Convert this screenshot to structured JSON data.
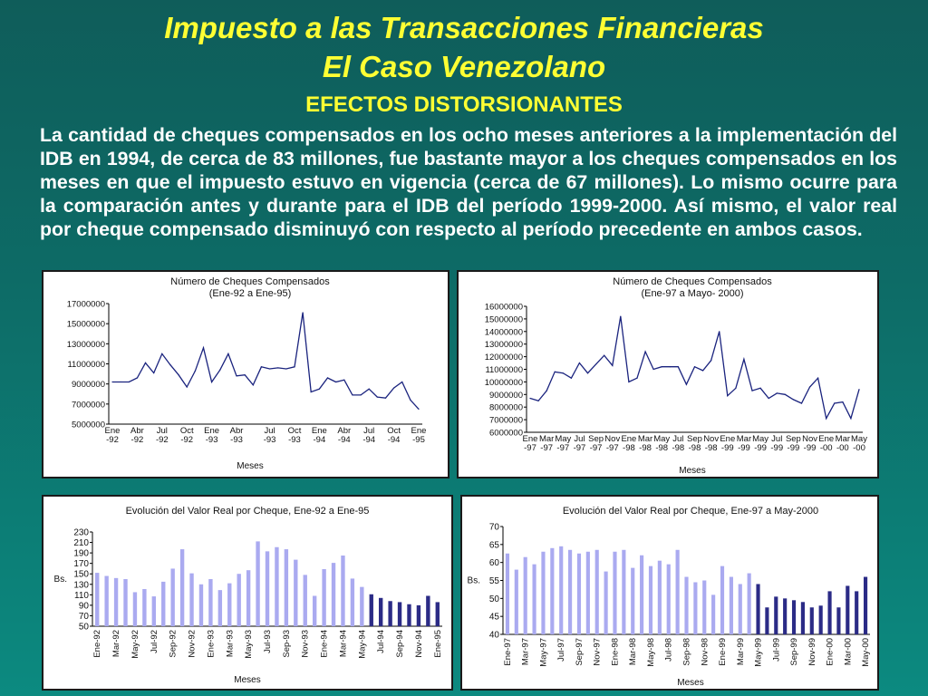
{
  "slide": {
    "title_line1": "Impuesto a las Transacciones Financieras",
    "title_line2": "El Caso Venezolano",
    "subtitle": "EFECTOS DISTORSIONANTES",
    "body": "La cantidad de cheques compensados en los ocho meses anteriores a la implementación del IDB en 1994, de cerca de 83 millones, fue bastante mayor a los cheques compensados en los meses en que el impuesto estuvo en vigencia (cerca de 67 millones). Lo mismo ocurre para la comparación antes y durante para el IDB del período 1999-2000. Así mismo, el valor real por cheque compensado disminuyó con respecto al período precedente en ambos casos."
  },
  "colors": {
    "title": "#ffff33",
    "line": "#1a237e",
    "bar_light": "#aaaaf0",
    "bar_dark": "#2b2b86"
  },
  "chart_data": [
    {
      "type": "line",
      "title": "Número de Cheques Compensados",
      "subtitle": "(Ene-92 a Ene-95)",
      "xlabel": "Meses",
      "ylim": [
        5000000,
        17000000
      ],
      "yticks": [
        "5000000",
        "7000000",
        "9000000",
        "11000000",
        "13000000",
        "15000000",
        "17000000"
      ],
      "xticks": [
        "Ene-92",
        "Abr-92",
        "Jul-92",
        "Oct-92",
        "Ene-93",
        "Abr-93",
        "Jul-93",
        "Oct-93",
        "Ene-94",
        "Abr-94",
        "Jul-94",
        "Oct-94",
        "Ene-95"
      ],
      "values": [
        9200000,
        9200000,
        9200000,
        9600000,
        11100000,
        10100000,
        12000000,
        10900000,
        9900000,
        8700000,
        10300000,
        12600000,
        9200000,
        10400000,
        12000000,
        9800000,
        9900000,
        8900000,
        10700000,
        10500000,
        10600000,
        10500000,
        10700000,
        16100000,
        8200000,
        8500000,
        9600000,
        9200000,
        9400000,
        7900000,
        7900000,
        8500000,
        7700000,
        7600000,
        8600000,
        9200000,
        7400000,
        6500000
      ]
    },
    {
      "type": "line",
      "title": "Número de Cheques Compensados",
      "subtitle": "(Ene-97 a Mayo- 2000)",
      "xlabel": "Meses",
      "ylim": [
        6000000,
        16000000
      ],
      "yticks": [
        "6000000",
        "7000000",
        "8000000",
        "9000000",
        "10000000",
        "11000000",
        "12000000",
        "13000000",
        "14000000",
        "15000000",
        "16000000"
      ],
      "xticks": [
        "Ene-97",
        "Mar-97",
        "May-97",
        "Jul-97",
        "Sep-97",
        "Nov-97",
        "Ene-98",
        "Mar-98",
        "May-98",
        "Jul-98",
        "Sep-98",
        "Nov-98",
        "Ene-99",
        "Mar-99",
        "May-99",
        "Jul-99",
        "Sep-99",
        "Nov-99",
        "Ene-00",
        "Mar-00",
        "May-00"
      ],
      "values": [
        8700000,
        8500000,
        9300000,
        10800000,
        10700000,
        10300000,
        11500000,
        10700000,
        11400000,
        12100000,
        11300000,
        15200000,
        10000000,
        10300000,
        12400000,
        11000000,
        11200000,
        11200000,
        11200000,
        9800000,
        11200000,
        10900000,
        11700000,
        14000000,
        8900000,
        9500000,
        11800000,
        9300000,
        9500000,
        8700000,
        9100000,
        9000000,
        8600000,
        8300000,
        9600000,
        10300000,
        7100000,
        8300000,
        8400000,
        7100000,
        9400000
      ]
    },
    {
      "type": "bar",
      "title": "Evolución del Valor Real por Cheque, Ene-92 a Ene-95",
      "xlabel": "Meses",
      "ylabel": "Bs.",
      "ylim": [
        50,
        230
      ],
      "yticks": [
        "50",
        "70",
        "90",
        "110",
        "130",
        "150",
        "170",
        "190",
        "210",
        "230"
      ],
      "categories": [
        "Ene-92",
        "Feb-92",
        "Mar-92",
        "Abr-92",
        "May-92",
        "Jun-92",
        "Jul-92",
        "Ago-92",
        "Sep-92",
        "Oct-92",
        "Nov-92",
        "Dic-92",
        "Ene-93",
        "Feb-93",
        "Mar-93",
        "Abr-93",
        "May-93",
        "Jun-93",
        "Jul-93",
        "Ago-93",
        "Sep-93",
        "Oct-93",
        "Nov-93",
        "Dic-93",
        "Ene-94",
        "Feb-94",
        "Mar-94",
        "Abr-94",
        "May-94",
        "Jun-94",
        "Jul-94",
        "Ago-94",
        "Sep-94",
        "Oct-94",
        "Nov-94",
        "Dic-94",
        "Ene-95"
      ],
      "xtick_labels": [
        "Ene-92",
        "Mar-92",
        "May-92",
        "Jul-92",
        "Sep-92",
        "Nov-92",
        "Ene-93",
        "Mar-93",
        "May-93",
        "Jul-93",
        "Sep-93",
        "Nov-93",
        "Ene-94",
        "Mar-94",
        "May-94",
        "Jul-94",
        "Sep-94",
        "Nov-94",
        "Ene-95"
      ],
      "values": [
        152,
        146,
        142,
        140,
        115,
        121,
        107,
        135,
        160,
        197,
        151,
        130,
        140,
        119,
        132,
        150,
        157,
        212,
        193,
        201,
        197,
        177,
        148,
        108,
        159,
        171,
        185,
        141,
        125,
        111,
        104,
        98,
        96,
        92,
        90,
        108,
        96
      ],
      "highlight_from": 29
    },
    {
      "type": "bar",
      "title": "Evolución del Valor Real por Cheque, Ene-97 a May-2000",
      "xlabel": "Meses",
      "ylabel": "Bs.",
      "ylim": [
        40,
        70
      ],
      "yticks": [
        "40",
        "45",
        "50",
        "55",
        "60",
        "65",
        "70"
      ],
      "categories": [
        "Ene-97",
        "Feb-97",
        "Mar-97",
        "Abr-97",
        "May-97",
        "Jun-97",
        "Jul-97",
        "Ago-97",
        "Sep-97",
        "Oct-97",
        "Nov-97",
        "Dic-97",
        "Ene-98",
        "Feb-98",
        "Mar-98",
        "Abr-98",
        "May-98",
        "Jun-98",
        "Jul-98",
        "Ago-98",
        "Sep-98",
        "Oct-98",
        "Nov-98",
        "Dic-98",
        "Ene-99",
        "Feb-99",
        "Mar-99",
        "Abr-99",
        "May-99",
        "Jun-99",
        "Jul-99",
        "Ago-99",
        "Sep-99",
        "Oct-99",
        "Nov-99",
        "Dic-99",
        "Ene-00",
        "Feb-00",
        "Mar-00",
        "Abr-00",
        "May-00"
      ],
      "xtick_labels": [
        "Ene-97",
        "Mar-97",
        "May-97",
        "Jul-97",
        "Sep-97",
        "Nov-97",
        "Ene-98",
        "Mar-98",
        "May-98",
        "Jul-98",
        "Sep-98",
        "Nov-98",
        "Ene-99",
        "Mar-99",
        "May-99",
        "Jul-99",
        "Sep-99",
        "Nov-99",
        "Ene-00",
        "Mar-00",
        "May-00"
      ],
      "values": [
        62.5,
        58,
        61.5,
        59.5,
        63,
        64,
        64.5,
        63.5,
        62.5,
        63,
        63.5,
        57.5,
        63,
        63.5,
        58.5,
        62,
        59,
        60.5,
        59.5,
        63.5,
        56,
        54.5,
        55,
        51,
        59,
        56,
        54,
        57,
        54,
        47.5,
        50.5,
        50,
        49.5,
        49,
        47.5,
        48,
        52,
        47.5,
        53.5,
        52,
        56
      ],
      "highlight_from": 28
    }
  ]
}
